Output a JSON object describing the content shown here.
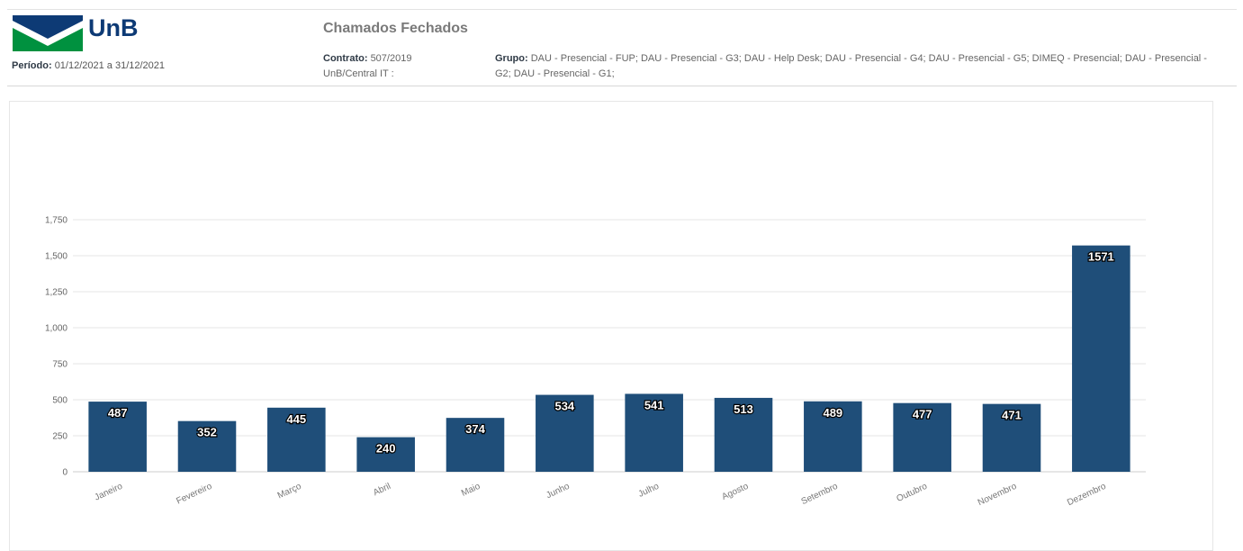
{
  "header": {
    "logo_text": "UnB",
    "period_label": "Período:",
    "period_value": "01/12/2021 a 31/12/2021",
    "report_title": "Chamados Fechados",
    "contract_label": "Contrato:",
    "contract_value": "507/2019",
    "contract_org": "UnB/Central IT :",
    "group_label": "Grupo:",
    "group_value": "DAU - Presencial - FUP; DAU - Presencial - G3; DAU - Help Desk; DAU - Presencial - G4; DAU - Presencial - G5; DIMEQ - Presencial; DAU - Presencial - G2; DAU - Presencial - G1;"
  },
  "colors": {
    "bar": "#1f4e79",
    "grid": "#e6e6e6",
    "logo_blue": "#0d3a75",
    "logo_green": "#00913f"
  },
  "chart_data": {
    "type": "bar",
    "categories": [
      "Janeiro",
      "Fevereiro",
      "Março",
      "Abril",
      "Maio",
      "Junho",
      "Julho",
      "Agosto",
      "Setembro",
      "Outubro",
      "Novembro",
      "Dezembro"
    ],
    "values": [
      487,
      352,
      445,
      240,
      374,
      534,
      541,
      513,
      489,
      477,
      471,
      1571
    ],
    "title": "",
    "xlabel": "",
    "ylabel": "",
    "ylim": [
      0,
      1750
    ],
    "yticks": [
      "0",
      "250",
      "500",
      "750",
      "1,000",
      "1,250",
      "1,500",
      "1,750"
    ],
    "grid": true,
    "legend": false
  }
}
